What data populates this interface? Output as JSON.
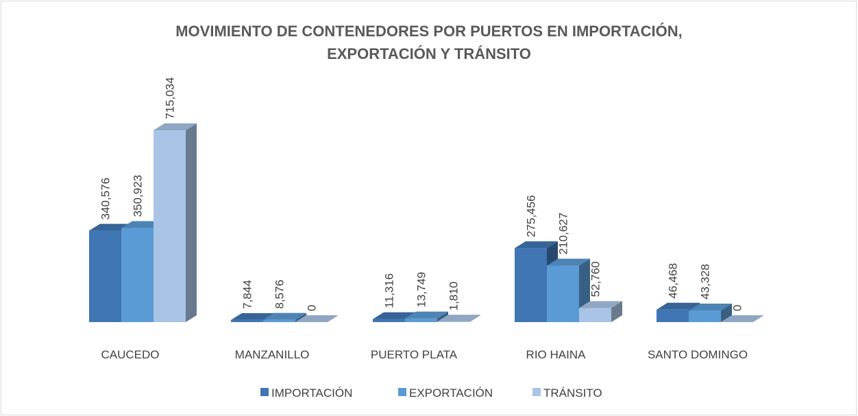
{
  "chart_data": {
    "type": "bar3d",
    "title": [
      "MOVIMIENTO DE CONTENEDORES POR PUERTOS  EN IMPORTACIÓN,",
      "EXPORTACIÓN Y TRÁNSITO"
    ],
    "categories": [
      "CAUCEDO",
      "MANZANILLO",
      "PUERTO  PLATA",
      "RIO HAINA",
      "SANTO DOMINGO"
    ],
    "series": [
      {
        "name": "IMPORTACIÓN",
        "color": "#3f76b3",
        "values": [
          340576,
          7844,
          11316,
          275456,
          46468
        ],
        "value_labels": [
          "340,576",
          "7,844",
          "11,316",
          "275,456",
          "46,468"
        ]
      },
      {
        "name": "EXPORTACIÓN",
        "color": "#5b9bd5",
        "values": [
          350923,
          8576,
          13749,
          210627,
          43328
        ],
        "value_labels": [
          "350,923",
          "8,576",
          "13,749",
          "210,627",
          "43,328"
        ]
      },
      {
        "name": "TRÁNSITO",
        "color": "#a9c4e6",
        "values": [
          715034,
          0,
          1810,
          52760,
          0
        ],
        "value_labels": [
          "715,034",
          "0",
          "1,810",
          "52,760",
          "0"
        ]
      }
    ],
    "legend": "bottom"
  }
}
